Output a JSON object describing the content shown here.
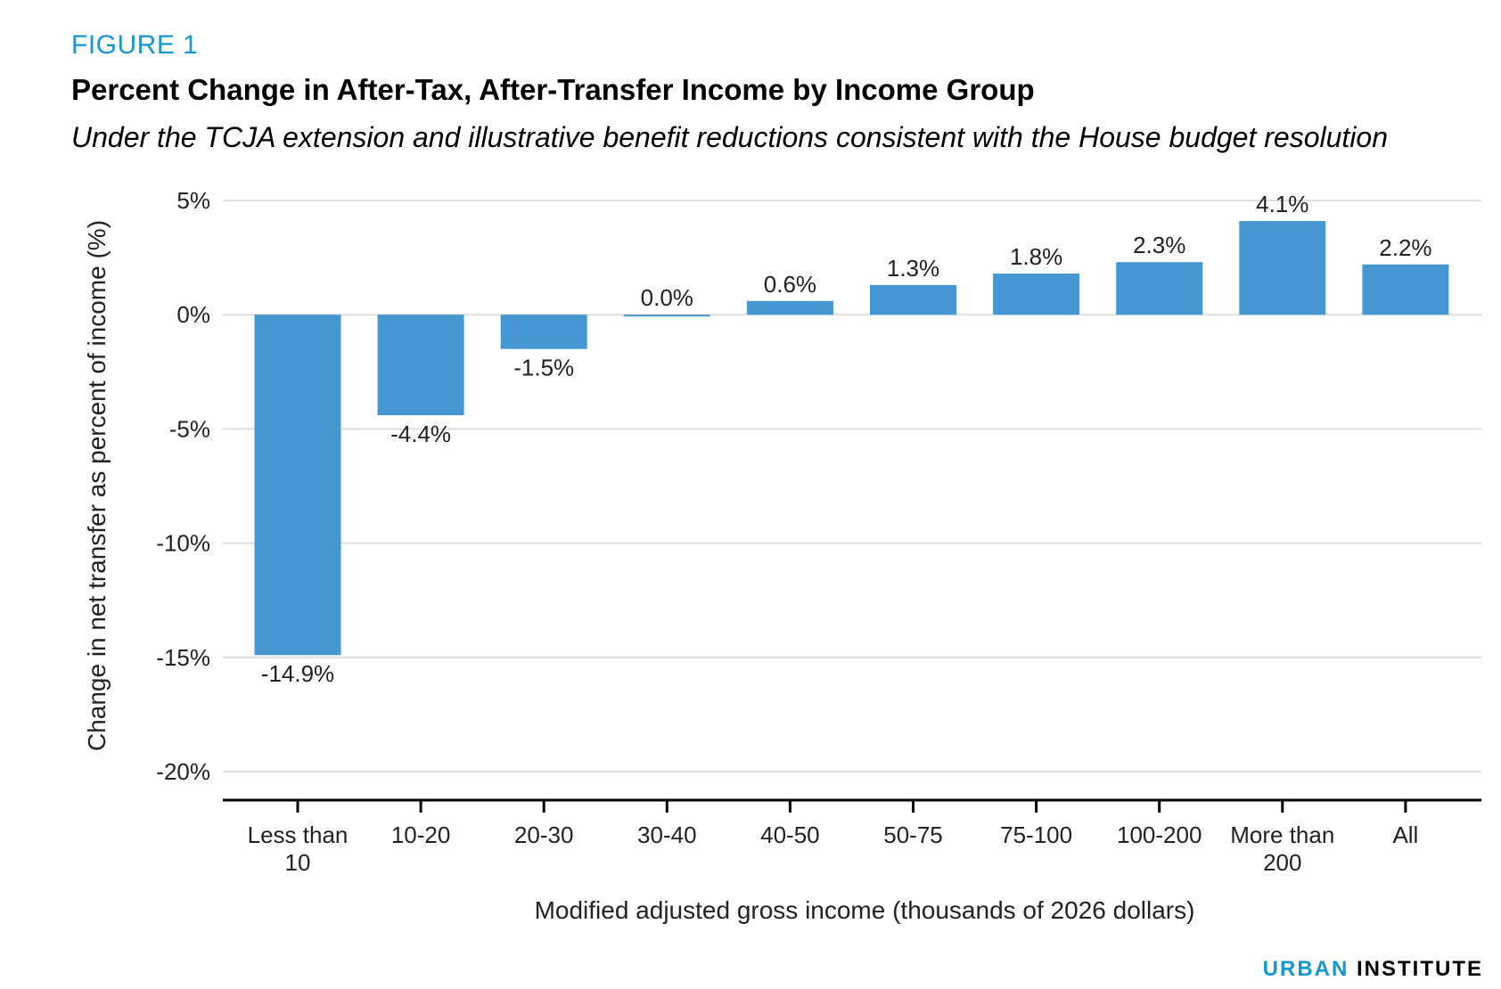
{
  "figure_label": "FIGURE 1",
  "title": "Percent Change in After-Tax, After-Transfer Income by Income Group",
  "subtitle": "Under the TCJA extension and illustrative benefit reductions consistent with the House budget resolution",
  "brand": {
    "urban": "URBAN",
    "institute": "INSTITUTE"
  },
  "chart_data": {
    "type": "bar",
    "categories": [
      [
        "Less than",
        "10"
      ],
      [
        "10-20"
      ],
      [
        "20-30"
      ],
      [
        "30-40"
      ],
      [
        "40-50"
      ],
      [
        "50-75"
      ],
      [
        "75-100"
      ],
      [
        "100-200"
      ],
      [
        "More than",
        "200"
      ],
      [
        "All"
      ]
    ],
    "values": [
      -14.9,
      -4.4,
      -1.5,
      0.0,
      0.6,
      1.3,
      1.8,
      2.3,
      4.1,
      2.2
    ],
    "data_labels": [
      "-14.9%",
      "-4.4%",
      "-1.5%",
      "0.0%",
      "0.6%",
      "1.3%",
      "1.8%",
      "2.3%",
      "4.1%",
      "2.2%"
    ],
    "yticks": [
      5,
      0,
      -5,
      -10,
      -15,
      -20
    ],
    "ytick_labels": [
      "5%",
      "0%",
      "-5%",
      "-10%",
      "-15%",
      "-20%"
    ],
    "ylim": [
      -20,
      5
    ],
    "xlabel": "Modified adjusted gross income (thousands of 2026 dollars)",
    "ylabel": "Change in net transfer as percent of income (%)",
    "grid": true,
    "bar_color": "#4696d2",
    "grid_color": "#dedede",
    "axis_color": "#000000"
  }
}
